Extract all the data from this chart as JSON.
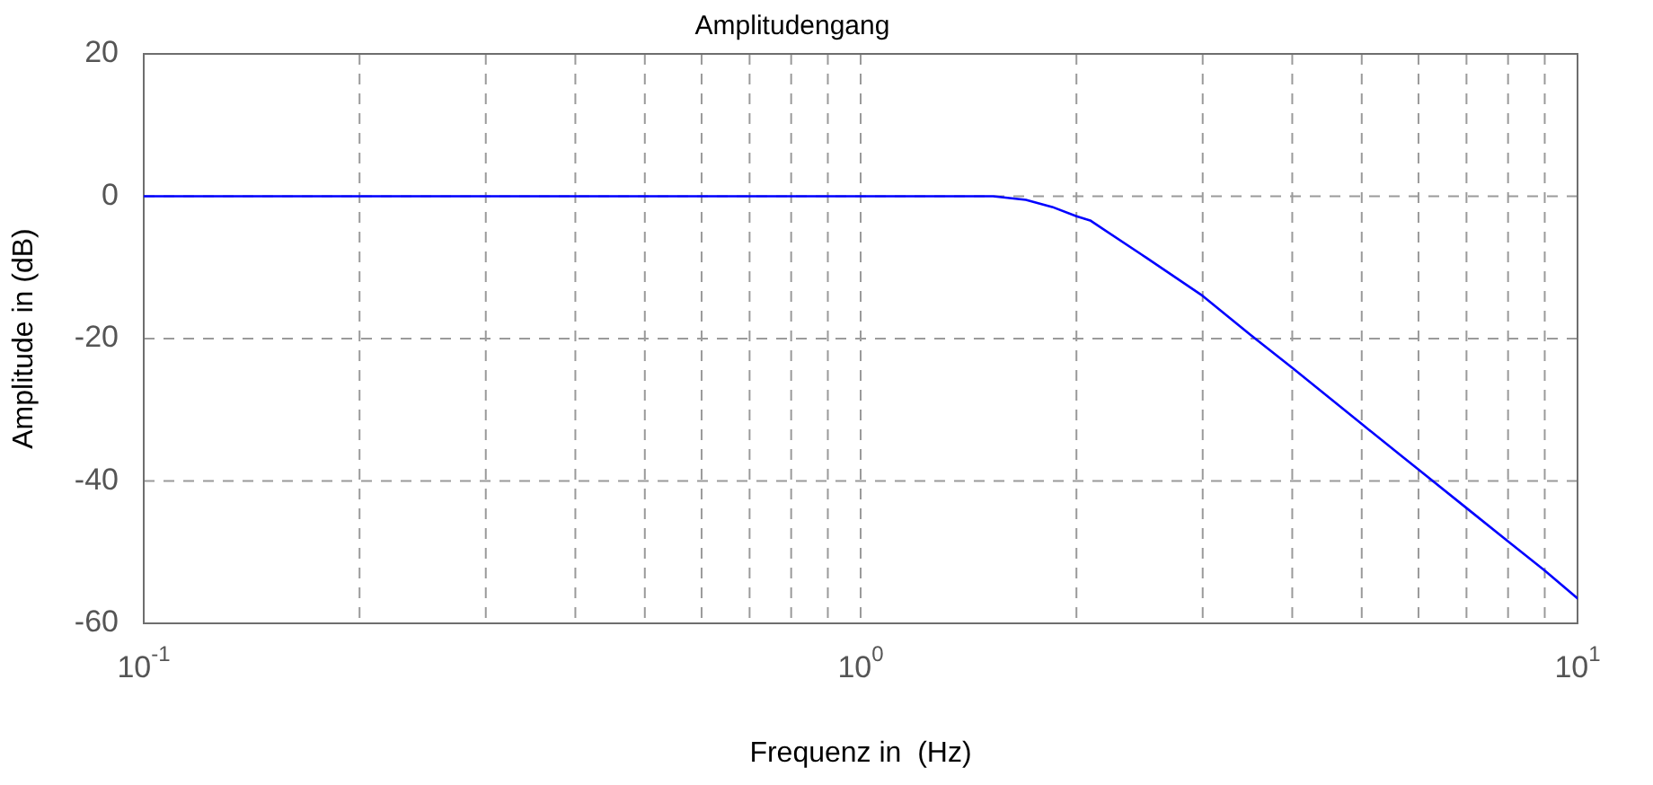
{
  "chart_data": {
    "type": "line",
    "title": "Amplitudengang",
    "xlabel": "Frequenz in  (Hz)",
    "ylabel": "Amplitude in (dB)",
    "x": [
      0.1,
      0.5,
      1,
      1.53,
      1.7,
      1.85,
      2,
      2.09,
      2.5,
      3,
      3.5,
      4,
      5,
      6,
      7,
      8,
      9,
      10
    ],
    "series": [
      {
        "color": "#0000ff",
        "values": [
          0,
          0,
          0,
          0,
          -0.5,
          -1.5,
          -2.8,
          -3.4,
          -8.6,
          -14,
          -19.5,
          -24.1,
          -32,
          -38.4,
          -43.8,
          -48.5,
          -52.6,
          -56.5
        ]
      }
    ],
    "log": "x",
    "xlim": [
      0.1,
      10
    ],
    "ylim": [
      -60,
      20
    ],
    "xticks": [
      {
        "value": 0.1,
        "label": "10$^{-1}$"
      },
      {
        "value": 0.2,
        "label": null
      },
      {
        "value": 0.3,
        "label": null
      },
      {
        "value": 0.4,
        "label": null
      },
      {
        "value": 0.5,
        "label": null
      },
      {
        "value": 0.6,
        "label": null
      },
      {
        "value": 0.7,
        "label": null
      },
      {
        "value": 0.8,
        "label": null
      },
      {
        "value": 0.9,
        "label": null
      },
      {
        "value": 1,
        "label": "10$^{0}$"
      },
      {
        "value": 2,
        "label": null
      },
      {
        "value": 3,
        "label": null
      },
      {
        "value": 4,
        "label": null
      },
      {
        "value": 5,
        "label": null
      },
      {
        "value": 6,
        "label": null
      },
      {
        "value": 7,
        "label": null
      },
      {
        "value": 8,
        "label": null
      },
      {
        "value": 9,
        "label": null
      },
      {
        "value": 10,
        "label": "10$^{1}$"
      }
    ],
    "yticks": [
      -60,
      -40,
      -20,
      0,
      20
    ],
    "grid": true,
    "legend": false,
    "marker": "none",
    "line_style": "solid"
  }
}
